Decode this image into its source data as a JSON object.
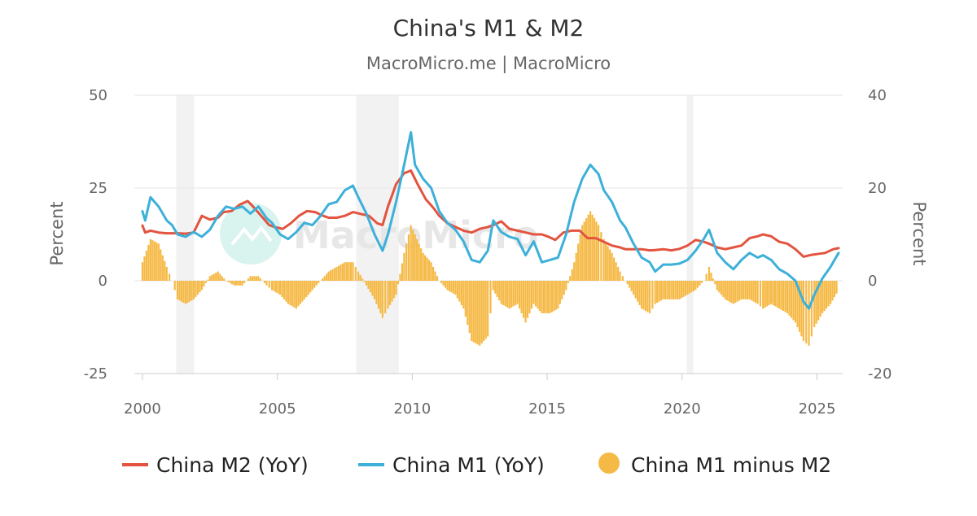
{
  "chart_data": {
    "type": "line",
    "title": "China's M1 & M2",
    "subtitle": "MacroMicro.me | MacroMicro",
    "watermark": "MacroMicro",
    "y_left": {
      "label": "Percent",
      "range": [
        -25,
        50
      ],
      "ticks": [
        -25,
        0,
        25,
        50
      ]
    },
    "y_right": {
      "label": "Percent",
      "range": [
        -20,
        40
      ],
      "ticks": [
        -20,
        0,
        20,
        40
      ]
    },
    "x_ticks": [
      2000,
      2005,
      2010,
      2015,
      2020,
      2025
    ],
    "x_range": [
      1999.7,
      2025.95
    ],
    "shaded_periods": [
      [
        2001.25,
        2001.92
      ],
      [
        2007.92,
        2009.5
      ],
      [
        2020.17,
        2020.42
      ]
    ],
    "colors": {
      "m2": "#e2543f",
      "m1": "#3db0d9",
      "diff": "#f5b945",
      "shade": "#f2f2f2",
      "grid": "#e6e6e6"
    },
    "legend": [
      {
        "label": "China M2 (YoY)",
        "color": "#e2543f",
        "marker": "line"
      },
      {
        "label": "China M1 (YoY)",
        "color": "#3db0d9",
        "marker": "line"
      },
      {
        "label": "China M1 minus M2",
        "color": "#f5b945",
        "marker": "circle"
      }
    ],
    "series": [
      {
        "name": "China M2 (YoY)",
        "axis": "left",
        "points": [
          [
            2000.0,
            14.9
          ],
          [
            2000.1,
            13.0
          ],
          [
            2000.3,
            13.5
          ],
          [
            2000.6,
            13.0
          ],
          [
            2000.9,
            12.8
          ],
          [
            2001.3,
            12.8
          ],
          [
            2001.6,
            12.7
          ],
          [
            2001.9,
            13.0
          ],
          [
            2002.2,
            17.5
          ],
          [
            2002.5,
            16.5
          ],
          [
            2002.8,
            17.0
          ],
          [
            2003.0,
            18.5
          ],
          [
            2003.3,
            18.8
          ],
          [
            2003.6,
            20.5
          ],
          [
            2003.9,
            21.5
          ],
          [
            2004.1,
            20.0
          ],
          [
            2004.4,
            17.5
          ],
          [
            2004.7,
            15.0
          ],
          [
            2004.9,
            14.5
          ],
          [
            2005.2,
            14.0
          ],
          [
            2005.5,
            15.5
          ],
          [
            2005.8,
            17.5
          ],
          [
            2006.1,
            18.8
          ],
          [
            2006.4,
            18.5
          ],
          [
            2006.7,
            17.5
          ],
          [
            2006.9,
            17.0
          ],
          [
            2007.2,
            17.0
          ],
          [
            2007.5,
            17.5
          ],
          [
            2007.8,
            18.5
          ],
          [
            2008.1,
            18.0
          ],
          [
            2008.4,
            17.5
          ],
          [
            2008.7,
            15.5
          ],
          [
            2008.9,
            15.0
          ],
          [
            2009.1,
            20.0
          ],
          [
            2009.4,
            26.0
          ],
          [
            2009.7,
            29.0
          ],
          [
            2009.95,
            29.7
          ],
          [
            2010.2,
            26.0
          ],
          [
            2010.5,
            22.0
          ],
          [
            2010.8,
            19.5
          ],
          [
            2011.0,
            17.5
          ],
          [
            2011.3,
            15.5
          ],
          [
            2011.6,
            14.5
          ],
          [
            2011.9,
            13.5
          ],
          [
            2012.2,
            13.0
          ],
          [
            2012.5,
            14.0
          ],
          [
            2012.8,
            14.5
          ],
          [
            2013.0,
            15.0
          ],
          [
            2013.3,
            16.0
          ],
          [
            2013.6,
            14.0
          ],
          [
            2013.9,
            13.5
          ],
          [
            2014.2,
            13.0
          ],
          [
            2014.5,
            12.5
          ],
          [
            2014.8,
            12.5
          ],
          [
            2015.0,
            12.0
          ],
          [
            2015.3,
            11.0
          ],
          [
            2015.6,
            13.0
          ],
          [
            2015.9,
            13.5
          ],
          [
            2016.2,
            13.5
          ],
          [
            2016.5,
            11.5
          ],
          [
            2016.8,
            11.5
          ],
          [
            2017.1,
            10.5
          ],
          [
            2017.4,
            9.5
          ],
          [
            2017.7,
            9.0
          ],
          [
            2017.9,
            8.5
          ],
          [
            2018.2,
            8.5
          ],
          [
            2018.5,
            8.5
          ],
          [
            2018.8,
            8.2
          ],
          [
            2019.0,
            8.3
          ],
          [
            2019.3,
            8.5
          ],
          [
            2019.6,
            8.2
          ],
          [
            2019.9,
            8.6
          ],
          [
            2020.2,
            9.5
          ],
          [
            2020.5,
            11.0
          ],
          [
            2020.8,
            10.5
          ],
          [
            2021.0,
            10.0
          ],
          [
            2021.3,
            9.0
          ],
          [
            2021.6,
            8.5
          ],
          [
            2021.9,
            9.0
          ],
          [
            2022.2,
            9.5
          ],
          [
            2022.5,
            11.5
          ],
          [
            2022.8,
            12.0
          ],
          [
            2023.0,
            12.5
          ],
          [
            2023.3,
            12.0
          ],
          [
            2023.6,
            10.5
          ],
          [
            2023.9,
            10.0
          ],
          [
            2024.2,
            8.5
          ],
          [
            2024.5,
            6.5
          ],
          [
            2024.8,
            7.0
          ],
          [
            2025.0,
            7.2
          ],
          [
            2025.3,
            7.5
          ],
          [
            2025.6,
            8.5
          ],
          [
            2025.8,
            8.8
          ]
        ]
      },
      {
        "name": "China M1 (YoY)",
        "axis": "right",
        "points": [
          [
            2000.0,
            15.0
          ],
          [
            2000.1,
            13.0
          ],
          [
            2000.3,
            18.0
          ],
          [
            2000.6,
            16.0
          ],
          [
            2000.9,
            13.0
          ],
          [
            2001.1,
            12.0
          ],
          [
            2001.3,
            10.0
          ],
          [
            2001.6,
            9.5
          ],
          [
            2001.9,
            10.5
          ],
          [
            2002.2,
            9.5
          ],
          [
            2002.5,
            11.0
          ],
          [
            2002.8,
            14.0
          ],
          [
            2003.1,
            16.0
          ],
          [
            2003.4,
            15.5
          ],
          [
            2003.7,
            16.0
          ],
          [
            2004.0,
            14.5
          ],
          [
            2004.3,
            16.0
          ],
          [
            2004.6,
            13.5
          ],
          [
            2004.8,
            12.5
          ],
          [
            2005.1,
            10.0
          ],
          [
            2005.4,
            9.0
          ],
          [
            2005.7,
            10.5
          ],
          [
            2006.0,
            12.5
          ],
          [
            2006.3,
            12.0
          ],
          [
            2006.6,
            14.0
          ],
          [
            2006.9,
            16.5
          ],
          [
            2007.2,
            17.0
          ],
          [
            2007.5,
            19.5
          ],
          [
            2007.8,
            20.5
          ],
          [
            2008.0,
            18.0
          ],
          [
            2008.3,
            14.5
          ],
          [
            2008.6,
            10.0
          ],
          [
            2008.9,
            6.5
          ],
          [
            2009.1,
            10.0
          ],
          [
            2009.4,
            17.0
          ],
          [
            2009.7,
            25.0
          ],
          [
            2009.95,
            32.0
          ],
          [
            2010.1,
            25.0
          ],
          [
            2010.4,
            22.0
          ],
          [
            2010.7,
            20.0
          ],
          [
            2011.0,
            15.0
          ],
          [
            2011.3,
            12.5
          ],
          [
            2011.6,
            11.0
          ],
          [
            2011.9,
            8.5
          ],
          [
            2012.2,
            4.5
          ],
          [
            2012.5,
            4.0
          ],
          [
            2012.8,
            6.5
          ],
          [
            2013.0,
            13.0
          ],
          [
            2013.3,
            10.5
          ],
          [
            2013.6,
            9.5
          ],
          [
            2013.9,
            9.0
          ],
          [
            2014.2,
            5.5
          ],
          [
            2014.5,
            8.5
          ],
          [
            2014.8,
            4.0
          ],
          [
            2015.1,
            4.5
          ],
          [
            2015.4,
            5.0
          ],
          [
            2015.7,
            10.0
          ],
          [
            2016.0,
            17.0
          ],
          [
            2016.3,
            22.0
          ],
          [
            2016.6,
            25.0
          ],
          [
            2016.9,
            23.0
          ],
          [
            2017.1,
            19.5
          ],
          [
            2017.4,
            17.0
          ],
          [
            2017.7,
            13.0
          ],
          [
            2017.9,
            11.5
          ],
          [
            2018.2,
            8.0
          ],
          [
            2018.5,
            5.0
          ],
          [
            2018.8,
            4.0
          ],
          [
            2019.0,
            2.0
          ],
          [
            2019.3,
            3.5
          ],
          [
            2019.6,
            3.5
          ],
          [
            2019.9,
            3.7
          ],
          [
            2020.2,
            4.5
          ],
          [
            2020.5,
            6.5
          ],
          [
            2020.8,
            9.0
          ],
          [
            2021.0,
            11.0
          ],
          [
            2021.3,
            6.0
          ],
          [
            2021.6,
            4.0
          ],
          [
            2021.9,
            2.5
          ],
          [
            2022.2,
            4.5
          ],
          [
            2022.5,
            6.0
          ],
          [
            2022.8,
            5.0
          ],
          [
            2023.0,
            5.5
          ],
          [
            2023.3,
            4.5
          ],
          [
            2023.6,
            2.5
          ],
          [
            2023.9,
            1.5
          ],
          [
            2024.2,
            0.0
          ],
          [
            2024.5,
            -4.5
          ],
          [
            2024.7,
            -6.0
          ],
          [
            2024.9,
            -3.0
          ],
          [
            2025.2,
            0.5
          ],
          [
            2025.5,
            3.0
          ],
          [
            2025.8,
            6.0
          ]
        ]
      },
      {
        "name": "China M1 minus M2",
        "axis": "right",
        "type": "bar",
        "points": [
          [
            2000.0,
            4
          ],
          [
            2000.3,
            9
          ],
          [
            2000.6,
            8
          ],
          [
            2000.9,
            3
          ],
          [
            2001.1,
            0
          ],
          [
            2001.3,
            -4
          ],
          [
            2001.6,
            -5
          ],
          [
            2001.9,
            -4
          ],
          [
            2002.2,
            -2
          ],
          [
            2002.5,
            1
          ],
          [
            2002.8,
            2
          ],
          [
            2003.1,
            0
          ],
          [
            2003.4,
            -1
          ],
          [
            2003.7,
            -1
          ],
          [
            2004.0,
            1
          ],
          [
            2004.3,
            1
          ],
          [
            2004.6,
            -1
          ],
          [
            2004.8,
            -2
          ],
          [
            2005.1,
            -3
          ],
          [
            2005.4,
            -5
          ],
          [
            2005.7,
            -6
          ],
          [
            2006.0,
            -4
          ],
          [
            2006.3,
            -2
          ],
          [
            2006.6,
            0
          ],
          [
            2006.9,
            2
          ],
          [
            2007.2,
            3
          ],
          [
            2007.5,
            4
          ],
          [
            2007.8,
            4
          ],
          [
            2008.0,
            2
          ],
          [
            2008.3,
            -1
          ],
          [
            2008.6,
            -4
          ],
          [
            2008.9,
            -8
          ],
          [
            2009.1,
            -6
          ],
          [
            2009.4,
            -3
          ],
          [
            2009.7,
            6
          ],
          [
            2009.95,
            12
          ],
          [
            2010.1,
            10
          ],
          [
            2010.4,
            6
          ],
          [
            2010.7,
            4
          ],
          [
            2011.0,
            0
          ],
          [
            2011.3,
            -2
          ],
          [
            2011.6,
            -3
          ],
          [
            2011.9,
            -6
          ],
          [
            2012.2,
            -13
          ],
          [
            2012.5,
            -14
          ],
          [
            2012.8,
            -12
          ],
          [
            2013.0,
            -2
          ],
          [
            2013.3,
            -5
          ],
          [
            2013.6,
            -6
          ],
          [
            2013.9,
            -5
          ],
          [
            2014.2,
            -9
          ],
          [
            2014.5,
            -5
          ],
          [
            2014.8,
            -7
          ],
          [
            2015.1,
            -7
          ],
          [
            2015.4,
            -6
          ],
          [
            2015.7,
            -2
          ],
          [
            2016.0,
            4
          ],
          [
            2016.3,
            12
          ],
          [
            2016.6,
            15
          ],
          [
            2016.9,
            12
          ],
          [
            2017.1,
            9
          ],
          [
            2017.4,
            6
          ],
          [
            2017.7,
            2
          ],
          [
            2017.9,
            0
          ],
          [
            2018.2,
            -3
          ],
          [
            2018.5,
            -6
          ],
          [
            2018.8,
            -7
          ],
          [
            2019.0,
            -5
          ],
          [
            2019.3,
            -4
          ],
          [
            2019.6,
            -4
          ],
          [
            2019.9,
            -4
          ],
          [
            2020.2,
            -3
          ],
          [
            2020.5,
            -2
          ],
          [
            2020.8,
            0
          ],
          [
            2021.0,
            3
          ],
          [
            2021.3,
            -2
          ],
          [
            2021.6,
            -4
          ],
          [
            2021.9,
            -5
          ],
          [
            2022.2,
            -4
          ],
          [
            2022.5,
            -4
          ],
          [
            2022.8,
            -5
          ],
          [
            2023.0,
            -6
          ],
          [
            2023.3,
            -5
          ],
          [
            2023.6,
            -6
          ],
          [
            2023.9,
            -7
          ],
          [
            2024.2,
            -9
          ],
          [
            2024.5,
            -13
          ],
          [
            2024.7,
            -14
          ],
          [
            2024.9,
            -10
          ],
          [
            2025.2,
            -7
          ],
          [
            2025.5,
            -5
          ],
          [
            2025.8,
            -2
          ]
        ]
      }
    ]
  }
}
